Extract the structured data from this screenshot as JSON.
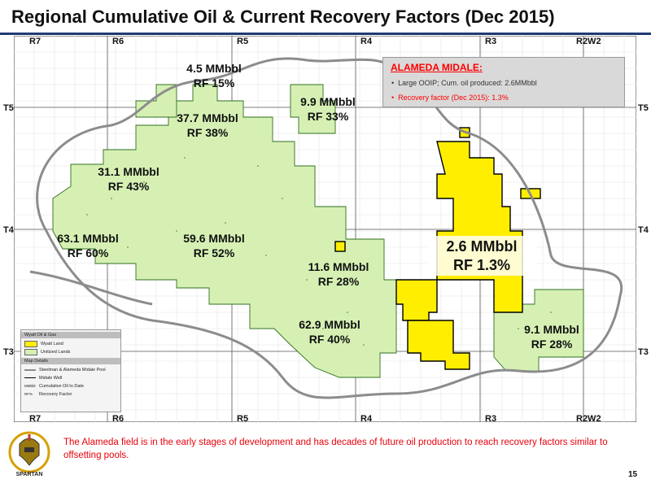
{
  "title": "Regional Cumulative Oil & Current Recovery Factors (Dec 2015)",
  "ranges_top": [
    "R7",
    "R6",
    "R5",
    "R4",
    "R3",
    "R2W2"
  ],
  "ranges_bottom": [
    "R7",
    "R6",
    "R5",
    "R4",
    "R3",
    "R2W2"
  ],
  "townships_left": [
    "T5",
    "T4",
    "T3"
  ],
  "townships_right": [
    "T5",
    "T4",
    "T3"
  ],
  "pool_labels": [
    {
      "vol": "4.5 MMbbl",
      "rf": "RF 15%"
    },
    {
      "vol": "37.7 MMbbl",
      "rf": "RF 38%"
    },
    {
      "vol": "9.9 MMbbl",
      "rf": "RF 33%"
    },
    {
      "vol": "31.1 MMbbl",
      "rf": "RF 43%"
    },
    {
      "vol": "63.1 MMbbl",
      "rf": "RF 60%"
    },
    {
      "vol": "59.6 MMbbl",
      "rf": "RF 52%"
    },
    {
      "vol": "11.6 MMbbl",
      "rf": "RF 28%"
    },
    {
      "vol": "62.9 MMbbl",
      "rf": "RF 40%"
    },
    {
      "vol": "9.1 MMbbl",
      "rf": "RF 28%"
    }
  ],
  "alameda_label": {
    "vol": "2.6 MMbbl",
    "rf": "RF 1.3%"
  },
  "callout": {
    "title": "ALAMEDA MIDALE:",
    "bullet1": "Large OOIP; Cum. oil produced: 2.6MMbbl",
    "bullet2": "Recovery factor (Dec 2015): 1.3%"
  },
  "legend": {
    "header1": "Wyatt Oil & Gas",
    "items1": [
      "Wyatt Land",
      "Unitized Lands"
    ],
    "header2": "Map Details",
    "items2": [
      "Steelman & Alameda Midale Pool",
      "Midale Well",
      "Cumulative Oil to Date",
      "Recovery Factor"
    ],
    "abbr": [
      "MMbbl",
      "RF%"
    ]
  },
  "footer": "The Alameda field is in the early stages of development and has decades of future oil production to reach recovery factors similar to offsetting pools.",
  "page_number": "15",
  "logo_text": "SPARTAN",
  "colors": {
    "unitized_green": "#d6f0b4",
    "wyatt_yellow": "#ffee00",
    "pool_outline": "#8c8c8c",
    "title_rule": "#1f3b73",
    "footer_red": "#e8000b",
    "callout_red": "#ff0000"
  }
}
